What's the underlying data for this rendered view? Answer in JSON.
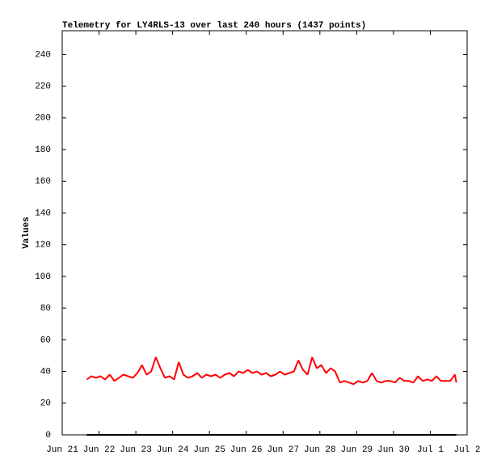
{
  "chart_data": {
    "type": "line",
    "title": "Telemetry for LY4RLS-13 over last 240 hours (1437 points)",
    "y_label": "Values",
    "ylim": [
      0,
      255
    ],
    "yticks": [
      0,
      20,
      40,
      60,
      80,
      100,
      120,
      140,
      160,
      180,
      200,
      220,
      240
    ],
    "xlim": [
      "06-21T00",
      "07-02T00"
    ],
    "xticks": [
      {
        "value": "06-21T00",
        "label": "Jun 21"
      },
      {
        "value": "06-22T00",
        "label": "Jun 22"
      },
      {
        "value": "06-23T00",
        "label": "Jun 23"
      },
      {
        "value": "06-24T00",
        "label": "Jun 24"
      },
      {
        "value": "06-25T00",
        "label": "Jun 25"
      },
      {
        "value": "06-26T00",
        "label": "Jun 26"
      },
      {
        "value": "06-27T00",
        "label": "Jun 27"
      },
      {
        "value": "06-28T00",
        "label": "Jun 28"
      },
      {
        "value": "06-29T00",
        "label": "Jun 29"
      },
      {
        "value": "06-30T00",
        "label": "Jun 30"
      },
      {
        "value": "07-01T00",
        "label": "Jul 1"
      },
      {
        "value": "07-02T00",
        "label": "Jul 2"
      }
    ],
    "grid": false,
    "series": [
      {
        "color": "#ff0000",
        "x": [
          "06-21T16",
          "06-21T19",
          "06-21T22",
          "06-22T01",
          "06-22T04",
          "06-22T07",
          "06-22T10",
          "06-22T13",
          "06-22T16",
          "06-22T19",
          "06-22T22",
          "06-23T01",
          "06-23T04",
          "06-23T07",
          "06-23T10",
          "06-23T13",
          "06-23T16",
          "06-23T19",
          "06-23T22",
          "06-24T01",
          "06-24T04",
          "06-24T07",
          "06-24T10",
          "06-24T13",
          "06-24T16",
          "06-24T19",
          "06-24T22",
          "06-25T01",
          "06-25T04",
          "06-25T07",
          "06-25T10",
          "06-25T13",
          "06-25T16",
          "06-25T19",
          "06-25T22",
          "06-26T01",
          "06-26T04",
          "06-26T07",
          "06-26T10",
          "06-26T13",
          "06-26T16",
          "06-26T19",
          "06-26T22",
          "06-27T01",
          "06-27T04",
          "06-27T07",
          "06-27T10",
          "06-27T13",
          "06-27T16",
          "06-27T19",
          "06-27T22",
          "06-28T01",
          "06-28T04",
          "06-28T07",
          "06-28T10",
          "06-28T13",
          "06-28T16",
          "06-28T19",
          "06-28T22",
          "06-29T01",
          "06-29T04",
          "06-29T07",
          "06-29T10",
          "06-29T13",
          "06-29T16",
          "06-29T19",
          "06-29T22",
          "06-30T01",
          "06-30T04",
          "06-30T07",
          "06-30T10",
          "06-30T13",
          "06-30T16",
          "06-30T19",
          "06-30T22",
          "07-01T01",
          "07-01T04",
          "07-01T07",
          "07-01T10",
          "07-01T13",
          "07-01T16",
          "07-01T17"
        ],
        "values": [
          35,
          37,
          36,
          37,
          35,
          38,
          34,
          36,
          38,
          37,
          36,
          39,
          44,
          38,
          40,
          49,
          42,
          36,
          37,
          35,
          46,
          38,
          36,
          37,
          39,
          36,
          38,
          37,
          38,
          36,
          38,
          39,
          37,
          40,
          39,
          41,
          39,
          40,
          38,
          39,
          37,
          38,
          40,
          38,
          39,
          40,
          47,
          41,
          38,
          49,
          42,
          44,
          39,
          42,
          40,
          33,
          34,
          33,
          32,
          34,
          33,
          34,
          39,
          34,
          33,
          34,
          34,
          33,
          36,
          34,
          34,
          33,
          37,
          34,
          35,
          34,
          37,
          34,
          34,
          34,
          38,
          33
        ]
      },
      {
        "color": "#000000",
        "x": [
          "06-21T16",
          "07-01T17"
        ],
        "values": [
          0,
          0
        ]
      }
    ]
  }
}
